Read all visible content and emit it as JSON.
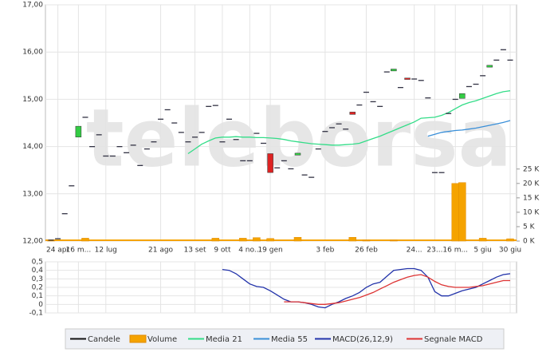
{
  "chart_data": [
    {
      "type": "candlestick",
      "watermark": "teleborsa",
      "candle_name": "Candele",
      "categories": [
        null,
        "24 apr",
        null,
        null,
        "16 m...",
        null,
        null,
        null,
        "12 lug",
        null,
        null,
        null,
        null,
        null,
        null,
        null,
        "21 ago",
        null,
        null,
        null,
        null,
        "13 set",
        null,
        null,
        null,
        "9 ott",
        null,
        null,
        null,
        "4 no...",
        null,
        null,
        "19 gen",
        null,
        null,
        null,
        null,
        null,
        null,
        null,
        "3 feb",
        null,
        null,
        null,
        null,
        null,
        "26 feb",
        null,
        null,
        null,
        null,
        null,
        null,
        "24...",
        null,
        null,
        "23...",
        null,
        null,
        "16 m...",
        null,
        null,
        null,
        "5 giu",
        null,
        null,
        null,
        "30 giu"
      ],
      "open": [
        12.02,
        12.05,
        12.58,
        13.17,
        14.2,
        14.62,
        14.0,
        14.25,
        13.8,
        13.8,
        14.0,
        13.87,
        14.03,
        13.6,
        13.95,
        14.1,
        14.58,
        14.78,
        14.5,
        14.3,
        14.1,
        14.2,
        14.3,
        14.85,
        14.87,
        14.1,
        14.58,
        14.15,
        13.7,
        13.7,
        14.28,
        14.07,
        13.85,
        13.55,
        13.7,
        13.53,
        13.82,
        13.4,
        13.35,
        13.95,
        14.32,
        14.4,
        14.48,
        14.37,
        14.73,
        14.88,
        15.15,
        14.95,
        14.85,
        15.58,
        15.6,
        15.25,
        15.45,
        15.43,
        15.4,
        15.03,
        13.45,
        13.45,
        14.7,
        15.0,
        15.02,
        15.27,
        15.32,
        15.5,
        15.68,
        15.83,
        16.05,
        15.83
      ],
      "close": [
        12.02,
        12.05,
        12.58,
        13.17,
        14.43,
        14.62,
        14.0,
        14.25,
        13.8,
        13.8,
        14.0,
        13.87,
        14.03,
        13.6,
        13.95,
        14.1,
        14.58,
        14.78,
        14.5,
        14.3,
        14.1,
        14.2,
        14.3,
        14.85,
        14.87,
        14.1,
        14.58,
        14.15,
        13.7,
        13.7,
        14.28,
        14.07,
        13.45,
        13.55,
        13.7,
        13.53,
        13.86,
        13.4,
        13.35,
        13.95,
        14.32,
        14.4,
        14.48,
        14.37,
        14.68,
        14.88,
        15.15,
        14.95,
        14.85,
        15.58,
        15.64,
        15.25,
        15.42,
        15.43,
        15.4,
        15.03,
        13.45,
        13.45,
        14.7,
        15.0,
        15.12,
        15.27,
        15.32,
        15.5,
        15.72,
        15.83,
        16.05,
        15.83
      ],
      "up_color": "#33cc44",
      "down_color": "#dd2222",
      "flat_color": "#334",
      "ylim": [
        12,
        17
      ],
      "yticks": [
        {
          "value": 12,
          "label": "12,00"
        },
        {
          "value": 13,
          "label": "13,00"
        },
        {
          "value": 14,
          "label": "14,00"
        },
        {
          "value": 15,
          "label": "15,00"
        },
        {
          "value": 16,
          "label": "16,00"
        },
        {
          "value": 17,
          "label": "17,00"
        }
      ],
      "volume": {
        "name": "Volume",
        "color": "#f5a300",
        "values": [
          0.4,
          0,
          0,
          0,
          0,
          1.0,
          0,
          0,
          0,
          0,
          0,
          0,
          0,
          0,
          0,
          0,
          0,
          0,
          0,
          0,
          0,
          0,
          0,
          0,
          1.0,
          0,
          0,
          0,
          1.0,
          0,
          1.2,
          0,
          0.9,
          0,
          0,
          0,
          1.3,
          0,
          0,
          0,
          0,
          0,
          0,
          0,
          1.3,
          0,
          0.3,
          0,
          0,
          0,
          0.3,
          0,
          0,
          0,
          0,
          0,
          0,
          0,
          0,
          20.0,
          20.3,
          0,
          0,
          1.0,
          0,
          0,
          0,
          0.8
        ],
        "y2lim": [
          0,
          82
        ],
        "y2ticks": [
          {
            "value": 0,
            "label": "0 K"
          },
          {
            "value": 5,
            "label": "5 K"
          },
          {
            "value": 10,
            "label": "10 K"
          },
          {
            "value": 15,
            "label": "15 K"
          },
          {
            "value": 20,
            "label": "20 K"
          },
          {
            "value": 25,
            "label": "25 K"
          }
        ]
      },
      "series": [
        {
          "name": "Media 21",
          "color": "#33dd88",
          "values": [
            null,
            null,
            null,
            null,
            null,
            null,
            null,
            null,
            null,
            null,
            null,
            null,
            null,
            null,
            null,
            null,
            null,
            null,
            null,
            null,
            13.85,
            13.95,
            14.05,
            14.12,
            14.18,
            14.2,
            14.2,
            14.21,
            14.2,
            14.2,
            14.19,
            14.19,
            14.18,
            14.17,
            14.15,
            14.12,
            14.1,
            14.08,
            14.06,
            14.05,
            14.04,
            14.03,
            14.03,
            14.04,
            14.05,
            14.07,
            14.12,
            14.17,
            14.22,
            14.28,
            14.34,
            14.4,
            14.46,
            14.52,
            14.6,
            14.61,
            14.62,
            14.66,
            14.72,
            14.8,
            14.88,
            14.93,
            14.97,
            15.02,
            15.07,
            15.12,
            15.16,
            15.18
          ]
        },
        {
          "name": "Media 55",
          "color": "#3a8fd8",
          "values": [
            null,
            null,
            null,
            null,
            null,
            null,
            null,
            null,
            null,
            null,
            null,
            null,
            null,
            null,
            null,
            null,
            null,
            null,
            null,
            null,
            null,
            null,
            null,
            null,
            null,
            null,
            null,
            null,
            null,
            null,
            null,
            null,
            null,
            null,
            null,
            null,
            null,
            null,
            null,
            null,
            null,
            null,
            null,
            null,
            null,
            null,
            null,
            null,
            null,
            null,
            null,
            null,
            null,
            null,
            null,
            14.22,
            14.26,
            14.3,
            14.32,
            14.34,
            14.35,
            14.37,
            14.39,
            14.42,
            14.45,
            14.48,
            14.51,
            14.55
          ]
        }
      ]
    },
    {
      "type": "line",
      "ylim": [
        -0.1,
        0.5
      ],
      "yticks": [
        {
          "value": 0.5,
          "label": "0,5"
        },
        {
          "value": 0.4,
          "label": "0,4"
        },
        {
          "value": 0.3,
          "label": "0,3"
        },
        {
          "value": 0.2,
          "label": "0,2"
        },
        {
          "value": 0.1,
          "label": "0,1"
        },
        0,
        {
          "value": -0.1,
          "label": "-0,1"
        }
      ],
      "series": [
        {
          "name": "MACD(26,12,9)",
          "color": "#2233aa",
          "values": [
            null,
            null,
            null,
            null,
            null,
            null,
            null,
            null,
            null,
            null,
            null,
            null,
            null,
            null,
            null,
            null,
            null,
            null,
            null,
            null,
            null,
            null,
            null,
            null,
            null,
            0.41,
            0.4,
            0.36,
            0.3,
            0.24,
            0.21,
            0.2,
            0.16,
            0.11,
            0.06,
            0.03,
            0.03,
            0.02,
            0.0,
            -0.03,
            -0.04,
            0.0,
            0.03,
            0.07,
            0.1,
            0.14,
            0.2,
            0.24,
            0.26,
            0.33,
            0.4,
            0.41,
            0.42,
            0.42,
            0.4,
            0.32,
            0.15,
            0.1,
            0.1,
            0.13,
            0.16,
            0.18,
            0.2,
            0.24,
            0.28,
            0.32,
            0.35,
            0.36
          ]
        },
        {
          "name": "Segnale MACD",
          "color": "#dd3333",
          "values": [
            null,
            null,
            null,
            null,
            null,
            null,
            null,
            null,
            null,
            null,
            null,
            null,
            null,
            null,
            null,
            null,
            null,
            null,
            null,
            null,
            null,
            null,
            null,
            null,
            null,
            null,
            null,
            null,
            null,
            null,
            null,
            null,
            null,
            null,
            0.03,
            0.03,
            0.03,
            0.02,
            0.01,
            0.0,
            0.0,
            0.01,
            0.02,
            0.04,
            0.06,
            0.08,
            0.11,
            0.14,
            0.18,
            0.22,
            0.26,
            0.29,
            0.32,
            0.34,
            0.35,
            0.32,
            0.27,
            0.23,
            0.21,
            0.2,
            0.2,
            0.2,
            0.21,
            0.22,
            0.24,
            0.26,
            0.28,
            0.28
          ]
        }
      ]
    }
  ]
}
